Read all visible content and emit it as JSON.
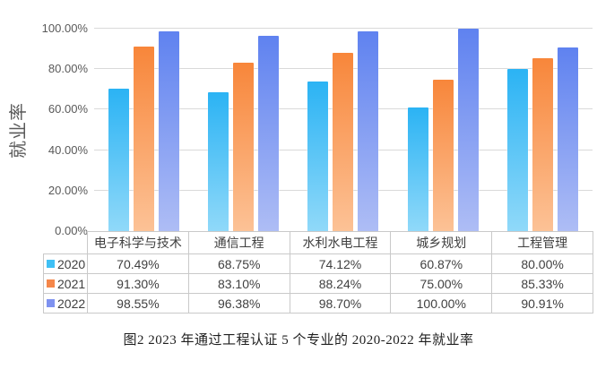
{
  "caption": "图2  2023 年通过工程认证 5 个专业的 2020-2022 年就业率",
  "colors": {
    "background": "#ffffff",
    "gridline": "#d9d9d9",
    "table_border": "#c9c9c9",
    "axis_text": "#595959",
    "table_text": "#404040",
    "caption_text": "#1f1f1f"
  },
  "chart_data": {
    "type": "bar",
    "title": "图2  2023 年通过工程认证 5 个专业的 2020-2022 年就业率",
    "xlabel": "",
    "ylabel": "就业率",
    "ylim": [
      0,
      100
    ],
    "grid": true,
    "legend_position": "table-left",
    "y_ticks": [
      "0.00%",
      "20.00%",
      "40.00%",
      "60.00%",
      "80.00%",
      "100.00%"
    ],
    "categories": [
      "电子科学与技术",
      "通信工程",
      "水利水电工程",
      "城乡规划",
      "工程管理"
    ],
    "series": [
      {
        "name": "2020",
        "values": [
          70.49,
          68.75,
          74.12,
          60.87,
          80.0
        ],
        "display_values": [
          "70.49%",
          "68.75%",
          "74.12%",
          "60.87%",
          "80.00%"
        ],
        "color_top": "#2bb3f4",
        "color_bottom": "#90d9f9",
        "swatch": "#3fc0f5"
      },
      {
        "name": "2021",
        "values": [
          91.3,
          83.1,
          88.24,
          75.0,
          85.33
        ],
        "display_values": [
          "91.30%",
          "83.10%",
          "88.24%",
          "75.00%",
          "85.33%"
        ],
        "color_top": "#f8863a",
        "color_bottom": "#fcc296",
        "swatch": "#f5874a"
      },
      {
        "name": "2022",
        "values": [
          98.55,
          96.38,
          98.7,
          100.0,
          90.91
        ],
        "display_values": [
          "98.55%",
          "96.38%",
          "98.70%",
          "100.00%",
          "90.91%"
        ],
        "color_top": "#5f82f0",
        "color_bottom": "#aebdf5",
        "swatch": "#7e92f0"
      }
    ]
  },
  "table": {
    "corner_label": "",
    "columns": [
      "电子科学与技术",
      "通信工程",
      "水利水电工程",
      "城乡规划",
      "工程管理"
    ],
    "rows": [
      {
        "label": "2020",
        "cells": [
          "70.49%",
          "68.75%",
          "74.12%",
          "60.87%",
          "80.00%"
        ]
      },
      {
        "label": "2021",
        "cells": [
          "91.30%",
          "83.10%",
          "88.24%",
          "75.00%",
          "85.33%"
        ]
      },
      {
        "label": "2022",
        "cells": [
          "98.55%",
          "96.38%",
          "98.70%",
          "100.00%",
          "90.91%"
        ]
      }
    ]
  }
}
